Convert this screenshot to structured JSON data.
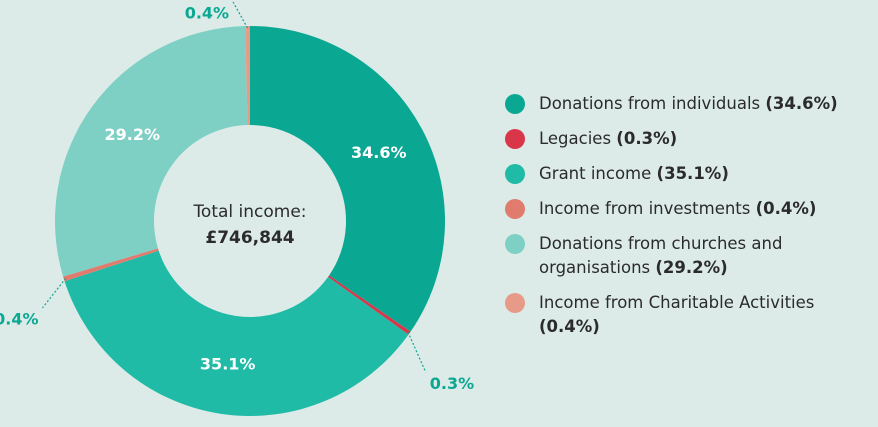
{
  "chart_data": {
    "type": "donut",
    "center_label": "Total income:",
    "center_value": "£746,844",
    "categories": [
      "Donations from individuals",
      "Legacies",
      "Grant income",
      "Income from investments",
      "Donations from churches and organisations",
      "Income from Charitable Activities"
    ],
    "values": [
      34.6,
      0.3,
      35.1,
      0.4,
      29.2,
      0.4
    ],
    "value_labels": [
      "34.6%",
      "0.3%",
      "35.1%",
      "0.4%",
      "29.2%",
      "0.4%"
    ],
    "legend_labels": [
      "(34.6%)",
      "(0.3%)",
      "(35.1%)",
      "(0.4%)",
      "(29.2%)",
      "(0.4%)"
    ],
    "colors": [
      "#0aa892",
      "#d9364a",
      "#1fbba6",
      "#e07b6e",
      "#7ecfc4",
      "#e89a88"
    ]
  }
}
